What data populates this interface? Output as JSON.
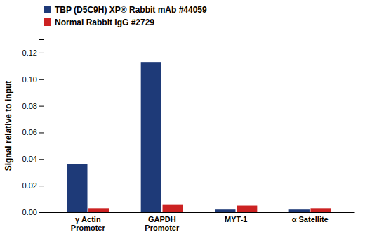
{
  "chart_data": {
    "type": "bar",
    "categories": [
      "γ Actin\nPromoter",
      "GAPDH\nPromoter",
      "MYT-1",
      "α Satellite"
    ],
    "series": [
      {
        "name": "TBP (D5C9H) XP® Rabbit mAb #44059",
        "color": "#1e3a78",
        "values": [
          0.036,
          0.113,
          0.002,
          0.002
        ]
      },
      {
        "name": "Normal Rabbit IgG #2729",
        "color": "#cc2222",
        "values": [
          0.003,
          0.006,
          0.005,
          0.003
        ]
      }
    ],
    "ylabel": "Signal relative to input",
    "ylim": [
      0,
      0.13
    ],
    "yticks": [
      {
        "value": 0,
        "label": "0.00"
      },
      0.02,
      0.04,
      0.06,
      0.08,
      {
        "value": 0.1,
        "label": "0.10"
      },
      0.12
    ],
    "grid": false,
    "legend": "top-left"
  }
}
